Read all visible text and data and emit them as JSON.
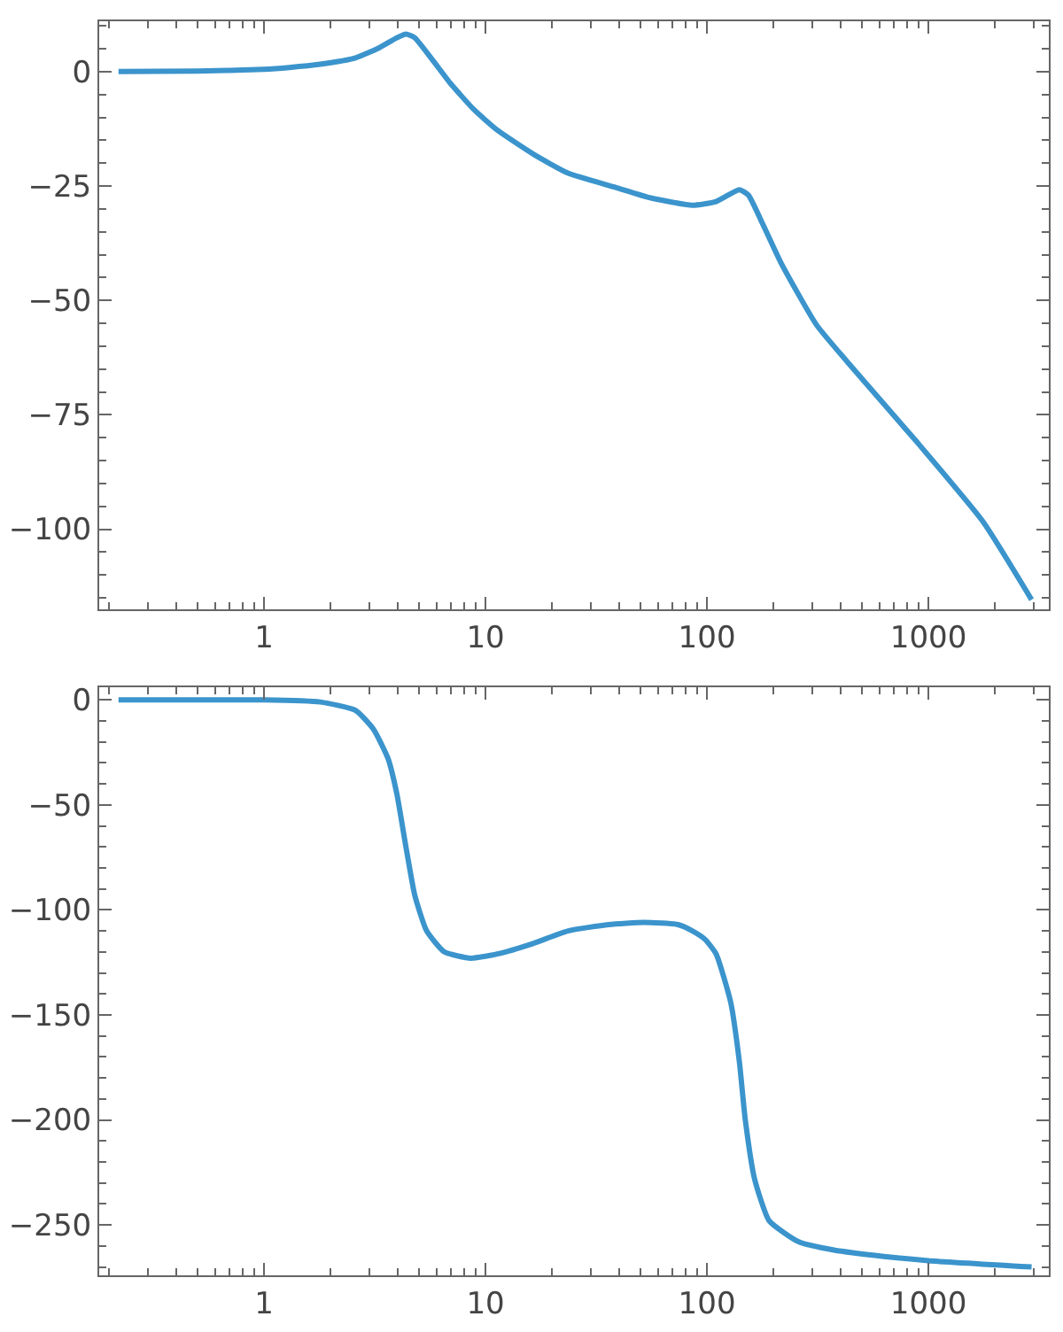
{
  "chart_data": [
    {
      "type": "line",
      "x": [
        0.22,
        0.5,
        1,
        1.3,
        1.79,
        2.59,
        3.31,
        3.98,
        4.37,
        4.79,
        5.75,
        6.92,
        8.86,
        11.3,
        16.4,
        23.6,
        38.7,
        55.8,
        85.9,
        110,
        140,
        154,
        179,
        216,
        312,
        430,
        872,
        1762,
        2925
      ],
      "values": [
        0,
        0.1,
        0.5,
        0.9,
        1.6,
        3,
        5.2,
        7.4,
        8.2,
        7.4,
        2.6,
        -2.5,
        -8.3,
        -12.8,
        -18,
        -22.2,
        -25.3,
        -27.6,
        -29.2,
        -28.4,
        -25.8,
        -27,
        -33.4,
        -41.8,
        -55.3,
        -63.4,
        -80.5,
        -98.3,
        -115.4
      ],
      "color": "#3b94cc",
      "log": "x",
      "xlim": [
        0.18,
        3500
      ],
      "ylim": [
        -117.5,
        11
      ],
      "xticks": [
        {
          "value": 0.2,
          "label": null
        },
        {
          "value": 0.3,
          "label": null
        },
        {
          "value": 0.4,
          "label": null
        },
        {
          "value": 0.5,
          "label": null
        },
        {
          "value": 0.6,
          "label": null
        },
        {
          "value": 0.7,
          "label": null
        },
        {
          "value": 0.8,
          "label": null
        },
        {
          "value": 0.9,
          "label": null
        },
        1,
        {
          "value": 2,
          "label": null
        },
        {
          "value": 3,
          "label": null
        },
        {
          "value": 4,
          "label": null
        },
        {
          "value": 5,
          "label": null
        },
        {
          "value": 6,
          "label": null
        },
        {
          "value": 7,
          "label": null
        },
        {
          "value": 8,
          "label": null
        },
        {
          "value": 9,
          "label": null
        },
        10,
        {
          "value": 20,
          "label": null
        },
        {
          "value": 30,
          "label": null
        },
        {
          "value": 40,
          "label": null
        },
        {
          "value": 50,
          "label": null
        },
        {
          "value": 60,
          "label": null
        },
        {
          "value": 70,
          "label": null
        },
        {
          "value": 80,
          "label": null
        },
        {
          "value": 90,
          "label": null
        },
        100,
        {
          "value": 200,
          "label": null
        },
        {
          "value": 300,
          "label": null
        },
        {
          "value": 400,
          "label": null
        },
        {
          "value": 500,
          "label": null
        },
        {
          "value": 600,
          "label": null
        },
        {
          "value": 700,
          "label": null
        },
        {
          "value": 800,
          "label": null
        },
        {
          "value": 900,
          "label": null
        },
        1000,
        {
          "value": 2000,
          "label": null
        },
        {
          "value": 3000,
          "label": null
        }
      ],
      "yticks": [
        {
          "value": 10,
          "label": null
        },
        {
          "value": 5,
          "label": null
        },
        0,
        {
          "value": -5,
          "label": null
        },
        {
          "value": -10,
          "label": null
        },
        {
          "value": -15,
          "label": null
        },
        {
          "value": -20,
          "label": null
        },
        -25,
        {
          "value": -30,
          "label": null
        },
        {
          "value": -35,
          "label": null
        },
        {
          "value": -40,
          "label": null
        },
        {
          "value": -45,
          "label": null
        },
        -50,
        {
          "value": -55,
          "label": null
        },
        {
          "value": -60,
          "label": null
        },
        {
          "value": -65,
          "label": null
        },
        {
          "value": -70,
          "label": null
        },
        -75,
        {
          "value": -80,
          "label": null
        },
        {
          "value": -85,
          "label": null
        },
        {
          "value": -90,
          "label": null
        },
        {
          "value": -95,
          "label": null
        },
        -100,
        {
          "value": -105,
          "label": null
        },
        {
          "value": -110,
          "label": null
        },
        {
          "value": -115,
          "label": null
        }
      ]
    },
    {
      "type": "line",
      "x": [
        0.22,
        0.5,
        1,
        1.79,
        2.59,
        3.12,
        3.63,
        3.98,
        4.37,
        4.79,
        5.42,
        6.51,
        8.59,
        11.3,
        16.4,
        23.6,
        36,
        52,
        74,
        85.9,
        98,
        110,
        128,
        140,
        149,
        164,
        191,
        259,
        375,
        631,
        1000,
        2925
      ],
      "values": [
        0,
        0,
        0,
        -1,
        -5,
        -14,
        -28,
        -45,
        -70,
        -93,
        -110,
        -120,
        -123,
        -121,
        -116,
        -110,
        -107,
        -106,
        -107,
        -110,
        -114,
        -121,
        -144,
        -172,
        -200,
        -228,
        -248,
        -258,
        -262,
        -265,
        -267,
        -270
      ],
      "color": "#3b94cc",
      "log": "x",
      "xlim": [
        0.18,
        3500
      ],
      "ylim": [
        -274,
        6
      ],
      "xticks": [
        {
          "value": 0.2,
          "label": null
        },
        {
          "value": 0.3,
          "label": null
        },
        {
          "value": 0.4,
          "label": null
        },
        {
          "value": 0.5,
          "label": null
        },
        {
          "value": 0.6,
          "label": null
        },
        {
          "value": 0.7,
          "label": null
        },
        {
          "value": 0.8,
          "label": null
        },
        {
          "value": 0.9,
          "label": null
        },
        1,
        {
          "value": 2,
          "label": null
        },
        {
          "value": 3,
          "label": null
        },
        {
          "value": 4,
          "label": null
        },
        {
          "value": 5,
          "label": null
        },
        {
          "value": 6,
          "label": null
        },
        {
          "value": 7,
          "label": null
        },
        {
          "value": 8,
          "label": null
        },
        {
          "value": 9,
          "label": null
        },
        10,
        {
          "value": 20,
          "label": null
        },
        {
          "value": 30,
          "label": null
        },
        {
          "value": 40,
          "label": null
        },
        {
          "value": 50,
          "label": null
        },
        {
          "value": 60,
          "label": null
        },
        {
          "value": 70,
          "label": null
        },
        {
          "value": 80,
          "label": null
        },
        {
          "value": 90,
          "label": null
        },
        100,
        {
          "value": 200,
          "label": null
        },
        {
          "value": 300,
          "label": null
        },
        {
          "value": 400,
          "label": null
        },
        {
          "value": 500,
          "label": null
        },
        {
          "value": 600,
          "label": null
        },
        {
          "value": 700,
          "label": null
        },
        {
          "value": 800,
          "label": null
        },
        {
          "value": 900,
          "label": null
        },
        1000,
        {
          "value": 2000,
          "label": null
        },
        {
          "value": 3000,
          "label": null
        }
      ],
      "yticks": [
        0,
        {
          "value": -10,
          "label": null
        },
        {
          "value": -20,
          "label": null
        },
        {
          "value": -30,
          "label": null
        },
        {
          "value": -40,
          "label": null
        },
        -50,
        {
          "value": -60,
          "label": null
        },
        {
          "value": -70,
          "label": null
        },
        {
          "value": -80,
          "label": null
        },
        {
          "value": -90,
          "label": null
        },
        -100,
        {
          "value": -110,
          "label": null
        },
        {
          "value": -120,
          "label": null
        },
        {
          "value": -130,
          "label": null
        },
        {
          "value": -140,
          "label": null
        },
        -150,
        {
          "value": -160,
          "label": null
        },
        {
          "value": -170,
          "label": null
        },
        {
          "value": -180,
          "label": null
        },
        {
          "value": -190,
          "label": null
        },
        -200,
        {
          "value": -210,
          "label": null
        },
        {
          "value": -220,
          "label": null
        },
        {
          "value": -230,
          "label": null
        },
        {
          "value": -240,
          "label": null
        },
        -250,
        {
          "value": -260,
          "label": null
        },
        {
          "value": -270,
          "label": null
        }
      ]
    }
  ]
}
